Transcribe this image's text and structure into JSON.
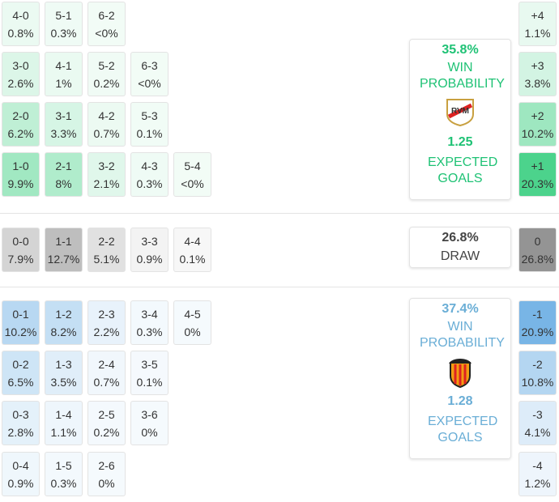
{
  "home": {
    "rows": [
      [
        {
          "score": "4-0",
          "pct": "0.8%"
        },
        {
          "score": "5-1",
          "pct": "0.3%"
        },
        {
          "score": "6-2",
          "pct": "<0%"
        }
      ],
      [
        {
          "score": "3-0",
          "pct": "2.6%"
        },
        {
          "score": "4-1",
          "pct": "1%"
        },
        {
          "score": "5-2",
          "pct": "0.2%"
        },
        {
          "score": "6-3",
          "pct": "<0%"
        }
      ],
      [
        {
          "score": "2-0",
          "pct": "6.2%"
        },
        {
          "score": "3-1",
          "pct": "3.3%"
        },
        {
          "score": "4-2",
          "pct": "0.7%"
        },
        {
          "score": "5-3",
          "pct": "0.1%"
        }
      ],
      [
        {
          "score": "1-0",
          "pct": "9.9%"
        },
        {
          "score": "2-1",
          "pct": "8%"
        },
        {
          "score": "3-2",
          "pct": "2.1%"
        },
        {
          "score": "4-3",
          "pct": "0.3%"
        },
        {
          "score": "5-4",
          "pct": "<0%"
        }
      ]
    ],
    "summary": {
      "probability": "35.8%",
      "label": "WIN PROBABILITY",
      "xg": "1.25",
      "xg_label": "EXPECTED GOALS"
    },
    "margins": [
      {
        "label": "+4",
        "pct": "1.1%"
      },
      {
        "label": "+3",
        "pct": "3.8%"
      },
      {
        "label": "+2",
        "pct": "10.2%"
      },
      {
        "label": "+1",
        "pct": "20.3%"
      }
    ]
  },
  "draw": {
    "rows": [
      [
        {
          "score": "0-0",
          "pct": "7.9%"
        },
        {
          "score": "1-1",
          "pct": "12.7%"
        },
        {
          "score": "2-2",
          "pct": "5.1%"
        },
        {
          "score": "3-3",
          "pct": "0.9%"
        },
        {
          "score": "4-4",
          "pct": "0.1%"
        }
      ]
    ],
    "summary": {
      "probability": "26.8%",
      "label": "DRAW"
    },
    "margins": [
      {
        "label": "0",
        "pct": "26.8%"
      }
    ]
  },
  "away": {
    "rows": [
      [
        {
          "score": "0-1",
          "pct": "10.2%"
        },
        {
          "score": "1-2",
          "pct": "8.2%"
        },
        {
          "score": "2-3",
          "pct": "2.2%"
        },
        {
          "score": "3-4",
          "pct": "0.3%"
        },
        {
          "score": "4-5",
          "pct": "0%"
        }
      ],
      [
        {
          "score": "0-2",
          "pct": "6.5%"
        },
        {
          "score": "1-3",
          "pct": "3.5%"
        },
        {
          "score": "2-4",
          "pct": "0.7%"
        },
        {
          "score": "3-5",
          "pct": "0.1%"
        }
      ],
      [
        {
          "score": "0-3",
          "pct": "2.8%"
        },
        {
          "score": "1-4",
          "pct": "1.1%"
        },
        {
          "score": "2-5",
          "pct": "0.2%"
        },
        {
          "score": "3-6",
          "pct": "0%"
        }
      ],
      [
        {
          "score": "0-4",
          "pct": "0.9%"
        },
        {
          "score": "1-5",
          "pct": "0.3%"
        },
        {
          "score": "2-6",
          "pct": "0%"
        }
      ]
    ],
    "summary": {
      "probability": "37.4%",
      "label": "WIN PROBABILITY",
      "xg": "1.28",
      "xg_label": "EXPECTED GOALS"
    },
    "margins": [
      {
        "label": "-1",
        "pct": "20.9%"
      },
      {
        "label": "-2",
        "pct": "10.8%"
      },
      {
        "label": "-3",
        "pct": "4.1%"
      },
      {
        "label": "-4",
        "pct": "1.2%"
      }
    ]
  }
}
